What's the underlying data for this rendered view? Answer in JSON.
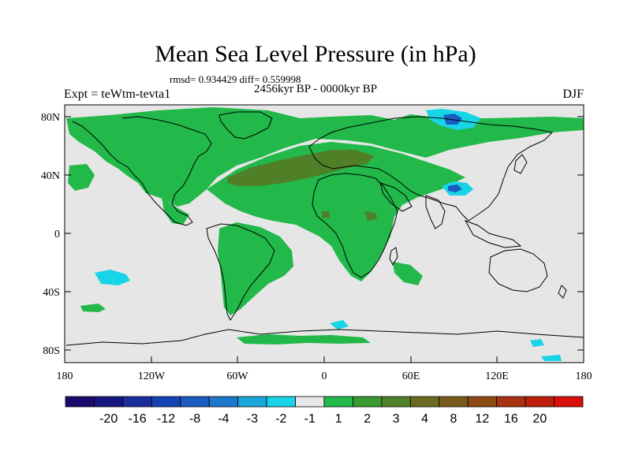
{
  "title": "Mean Sea Level Pressure (in hPa)",
  "stats_line": "rmsd= 0.934429 diff= 0.559998",
  "period": "2456kyr BP - 0000kyr BP",
  "experiment": "Expt = teWtm-tevta1",
  "season": "DJF",
  "lat_ticks": [
    "80N",
    "40N",
    "0",
    "40S",
    "80S"
  ],
  "lon_ticks": [
    "180",
    "120W",
    "60W",
    "0",
    "60E",
    "120E",
    "180"
  ],
  "colorbar": {
    "colors": [
      "#1a0a6b",
      "#15157f",
      "#1a2d99",
      "#1742b3",
      "#1a5cc2",
      "#1d77cc",
      "#1aa6d9",
      "#17d4e6",
      "#e6e6e6",
      "#22b84a",
      "#3a9a2e",
      "#4f8028",
      "#6b6a20",
      "#7a5a1a",
      "#8c4a14",
      "#a6330f",
      "#bf1f0a",
      "#d90f0a"
    ],
    "labels": [
      "-20",
      "-16",
      "-12",
      "-8",
      "-4",
      "-3",
      "-2",
      "-1",
      "1",
      "2",
      "3",
      "4",
      "8",
      "12",
      "16",
      "20"
    ]
  },
  "colors": {
    "background": "#e6e6e6",
    "positive_1": "#22b84a",
    "positive_3": "#4f8028",
    "negative_1": "#17d4e6",
    "negative_4": "#1a5cc2"
  }
}
